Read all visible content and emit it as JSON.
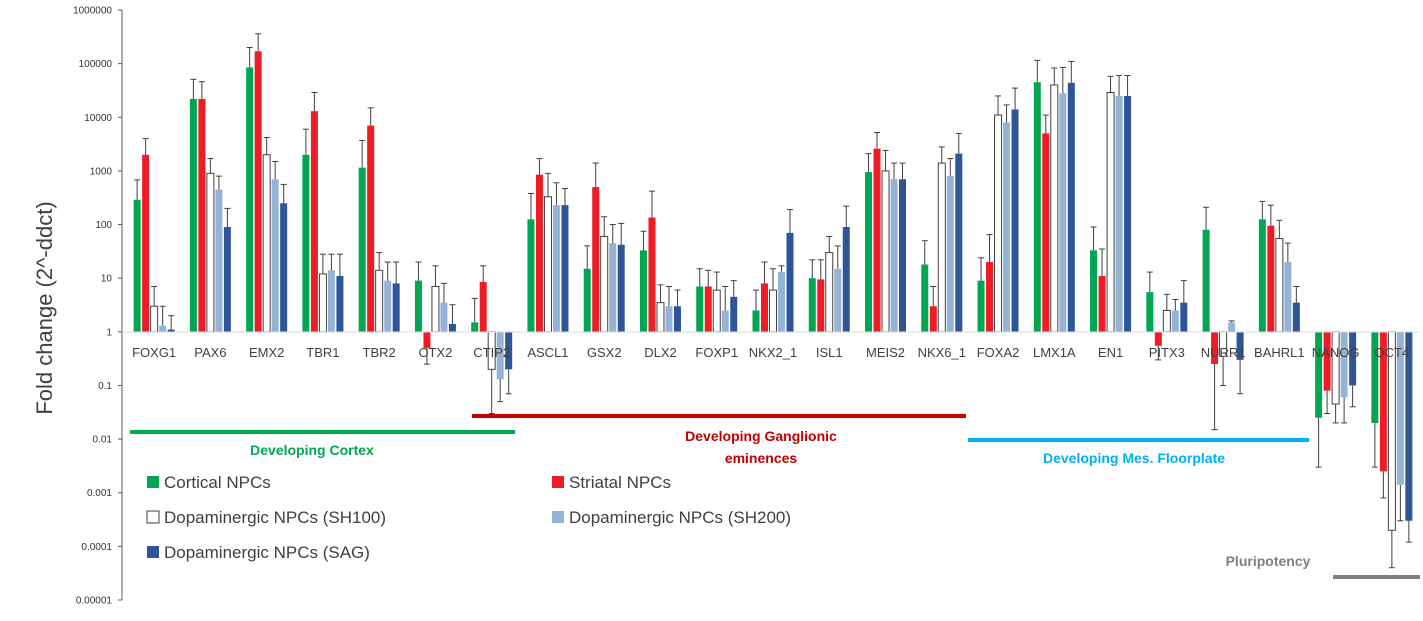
{
  "chart_data": {
    "type": "bar",
    "ylabel": "Fold change (2^-ddct)",
    "yscale": "log",
    "ylim": [
      1e-05,
      1000000
    ],
    "yticks": [
      "0.00001",
      "0.0001",
      "0.001",
      "0.01",
      "0.1",
      "1",
      "10",
      "100",
      "1000",
      "10000",
      "100000",
      "1000000"
    ],
    "categories": [
      "FOXG1",
      "PAX6",
      "EMX2",
      "TBR1",
      "TBR2",
      "OTX2",
      "CTIP2",
      "ASCL1",
      "GSX2",
      "DLX2",
      "FOXP1",
      "NKX2_1",
      "ISL1",
      "MEIS2",
      "NKX6_1",
      "FOXA2",
      "LMX1A",
      "EN1",
      "PITX3",
      "NURR1",
      "BAHRL1",
      "NANOG",
      "OCT4"
    ],
    "series": [
      {
        "name": "Cortical NPCs",
        "color": "#00a651",
        "style": "solid",
        "values": [
          290,
          22000,
          85000,
          2000,
          1150,
          9,
          1.5,
          125,
          15,
          33,
          7,
          2.5,
          10,
          950,
          18,
          9,
          45000,
          33,
          5.5,
          80,
          125,
          0.025,
          0.02
        ],
        "errors": [
          680,
          51000,
          200000,
          6000,
          3700,
          20,
          4.2,
          380,
          40,
          75,
          15,
          6,
          22,
          2100,
          50,
          24,
          115000,
          90,
          13,
          210,
          270,
          0.003,
          0.003
        ]
      },
      {
        "name": "Striatal NPCs",
        "color": "#ee1c25",
        "style": "solid",
        "values": [
          2000,
          22000,
          170000,
          13000,
          7000,
          0.5,
          8.5,
          850,
          500,
          135,
          7,
          8,
          9.5,
          2600,
          3,
          20,
          5000,
          11,
          0.55,
          0.25,
          95,
          0.08,
          0.0025
        ],
        "errors": [
          4000,
          46000,
          360000,
          29000,
          15000,
          0.25,
          17,
          1700,
          1400,
          420,
          14,
          20,
          22,
          5200,
          7,
          65,
          11000,
          35,
          0.3,
          0.015,
          230,
          0.03,
          0.0008
        ]
      },
      {
        "name": "Dopaminergic NPCs (SH100)",
        "color": "#ffffff",
        "style": "outline",
        "values": [
          3,
          900,
          2000,
          12,
          14,
          7,
          0.2,
          330,
          60,
          3.5,
          6,
          6,
          30,
          1000,
          1400,
          11000,
          40000,
          29000,
          2.5,
          0.35,
          55,
          0.045,
          0.0002
        ],
        "errors": [
          7,
          1700,
          4200,
          28,
          30,
          17,
          0.03,
          900,
          140,
          7.5,
          13,
          15,
          60,
          2400,
          2800,
          25000,
          83000,
          58000,
          5,
          0.1,
          120,
          0.02,
          4e-05
        ]
      },
      {
        "name": "Dopaminergic NPCs (SH200)",
        "color": "#95b3d7",
        "style": "solid",
        "values": [
          1.3,
          450,
          700,
          14,
          9,
          3.5,
          0.13,
          230,
          45,
          3,
          2.5,
          13,
          15,
          700,
          800,
          8000,
          28000,
          25000,
          2.5,
          1.5,
          20,
          0.06,
          0.0014
        ],
        "errors": [
          3,
          800,
          1500,
          28,
          20,
          8,
          0.05,
          600,
          100,
          7,
          7,
          17,
          40,
          1400,
          1700,
          17000,
          85000,
          60000,
          4,
          1.6,
          45,
          0.02,
          0.0003
        ]
      },
      {
        "name": "Dopaminergic NPCs (SAG)",
        "color": "#2e5597",
        "style": "solid",
        "values": [
          1.1,
          90,
          250,
          11,
          8,
          1.4,
          0.2,
          230,
          42,
          3,
          4.5,
          70,
          90,
          700,
          2100,
          14000,
          44000,
          25000,
          3.5,
          0.3,
          3.5,
          0.1,
          0.0003
        ],
        "errors": [
          2,
          200,
          560,
          28,
          20,
          3.2,
          0.07,
          470,
          105,
          6,
          9,
          190,
          220,
          1400,
          5000,
          35000,
          110000,
          60000,
          9,
          0.07,
          7,
          0.04,
          0.00012
        ]
      }
    ],
    "groups": [
      {
        "label": "Developing Cortex",
        "color": "#00a651",
        "from": 0,
        "to": 6.5
      },
      {
        "label": "Developing Ganglionic eminences",
        "color": "#c00000",
        "from": 6.5,
        "to": 15.5
      },
      {
        "label": "Developing Mes. Floorplate",
        "color": "#00b0f0",
        "from": 15.5,
        "to": 21.5
      },
      {
        "label": "Pluripotency",
        "color": "#7f7f7f",
        "from": 21.5,
        "to": 23
      }
    ],
    "group_labels": {
      "cortex": "Developing Cortex",
      "ge_line1": "Developing Ganglionic",
      "ge_line2": "eminences",
      "mes": "Developing Mes. Floorplate",
      "pluri": "Pluripotency"
    },
    "legend": [
      {
        "name": "Cortical NPCs",
        "color": "#00a651"
      },
      {
        "name": "Striatal NPCs",
        "color": "#ee1c25"
      },
      {
        "name": "Dopaminergic NPCs (SH100)",
        "color": "#ffffff"
      },
      {
        "name": "Dopaminergic NPCs (SH200)",
        "color": "#95b3d7"
      },
      {
        "name": "Dopaminergic NPCs (SAG)",
        "color": "#2e5597"
      }
    ],
    "legend_position": "bottom-left",
    "grid": false
  }
}
